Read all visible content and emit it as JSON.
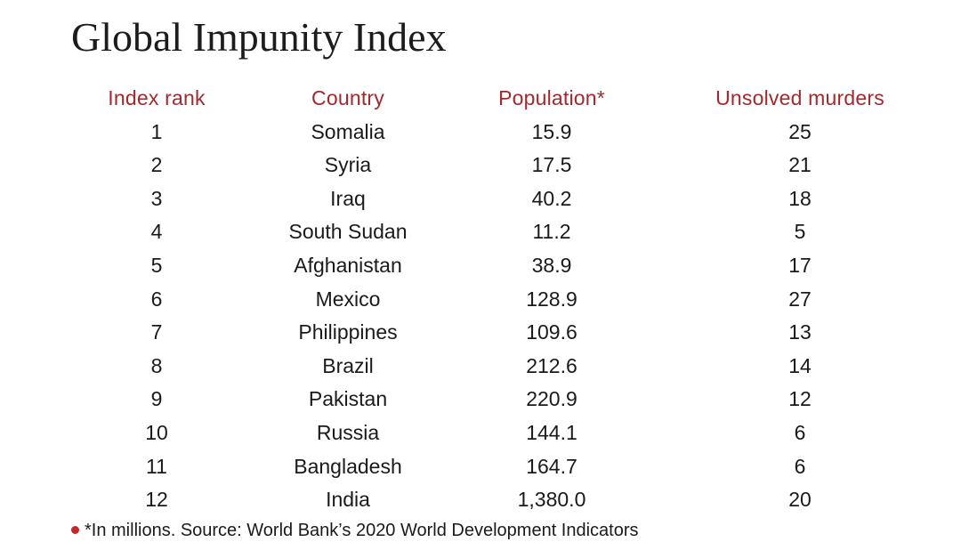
{
  "title": "Global Impunity Index",
  "table": {
    "headers": {
      "rank": "Index rank",
      "country": "Country",
      "population": "Population*",
      "murders": "Unsolved murders"
    },
    "rows": [
      {
        "rank": "1",
        "country": "Somalia",
        "population": "15.9",
        "murders": "25"
      },
      {
        "rank": "2",
        "country": "Syria",
        "population": "17.5",
        "murders": "21"
      },
      {
        "rank": "3",
        "country": "Iraq",
        "population": "40.2",
        "murders": "18"
      },
      {
        "rank": "4",
        "country": "South Sudan",
        "population": "11.2",
        "murders": "5"
      },
      {
        "rank": "5",
        "country": "Afghanistan",
        "population": "38.9",
        "murders": "17"
      },
      {
        "rank": "6",
        "country": "Mexico",
        "population": "128.9",
        "murders": "27"
      },
      {
        "rank": "7",
        "country": "Philippines",
        "population": "109.6",
        "murders": "13"
      },
      {
        "rank": "8",
        "country": "Brazil",
        "population": "212.6",
        "murders": "14"
      },
      {
        "rank": "9",
        "country": "Pakistan",
        "population": "220.9",
        "murders": "12"
      },
      {
        "rank": "10",
        "country": "Russia",
        "population": "144.1",
        "murders": "6"
      },
      {
        "rank": "11",
        "country": "Bangladesh",
        "population": "164.7",
        "murders": "6"
      },
      {
        "rank": "12",
        "country": "India",
        "population": "1,380.0",
        "murders": "20"
      }
    ]
  },
  "footnote": "*In millions. Source: World Bank’s 2020 World Development Indicators",
  "colors": {
    "header": "#a2292e",
    "bullet": "#c0282d",
    "text": "#1a1a1a"
  }
}
